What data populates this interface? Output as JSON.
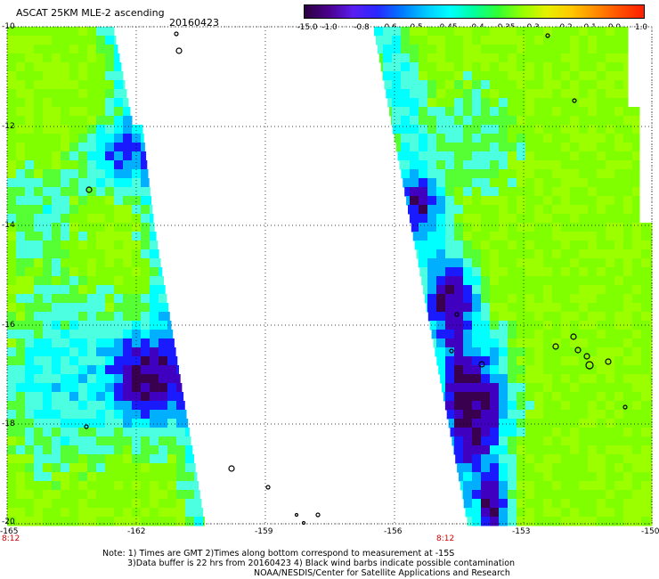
{
  "header": {
    "title": "ASCAT 25KM MLE-2 ascending",
    "date": "20160423"
  },
  "colorbar": {
    "tick_labels": [
      "-15.0",
      "-1.0",
      "-0.8",
      "-0.6",
      "-0.5",
      "-0.45",
      "-0.4",
      "-0.35",
      "-0.3",
      "-0.2",
      "-0.1",
      "0.0",
      "1.0"
    ],
    "colors": [
      "#2a0040",
      "#4b008c",
      "#5a1ef0",
      "#2828ff",
      "#0078ff",
      "#00c8ff",
      "#00ffff",
      "#00ff9c",
      "#32ff32",
      "#96ff00",
      "#e6f000",
      "#ffc800",
      "#ff8c00",
      "#ff5000",
      "#ff1e00"
    ]
  },
  "map": {
    "lat_labels": [
      "-10",
      "-12",
      "-14",
      "-16",
      "-18",
      "-20"
    ],
    "lon_labels": [
      "-165",
      "-162",
      "-159",
      "-156",
      "-153",
      "-150"
    ],
    "time_labels": [
      "8:12",
      "8:12"
    ],
    "colors": {
      "green_main": "#7fff00",
      "green_light": "#9cff00",
      "green_alt": "#55ff33",
      "cyan": "#00ffff",
      "cyan_light": "#4cffe0",
      "blue_light": "#00b0ff",
      "blue": "#1a1aff",
      "violet": "#4000c0",
      "dark_purple": "#3a0050"
    }
  },
  "notes": {
    "line1": "Note: 1) Times are GMT 2)Times along bottom correspond to measurement at -15S",
    "line2": "3)Data buffer is 22 hrs from 20160423 4) Black wind barbs indicate possible contamination",
    "line3": "NOAA/NESDIS/Center for Satellite Applications and Research"
  }
}
